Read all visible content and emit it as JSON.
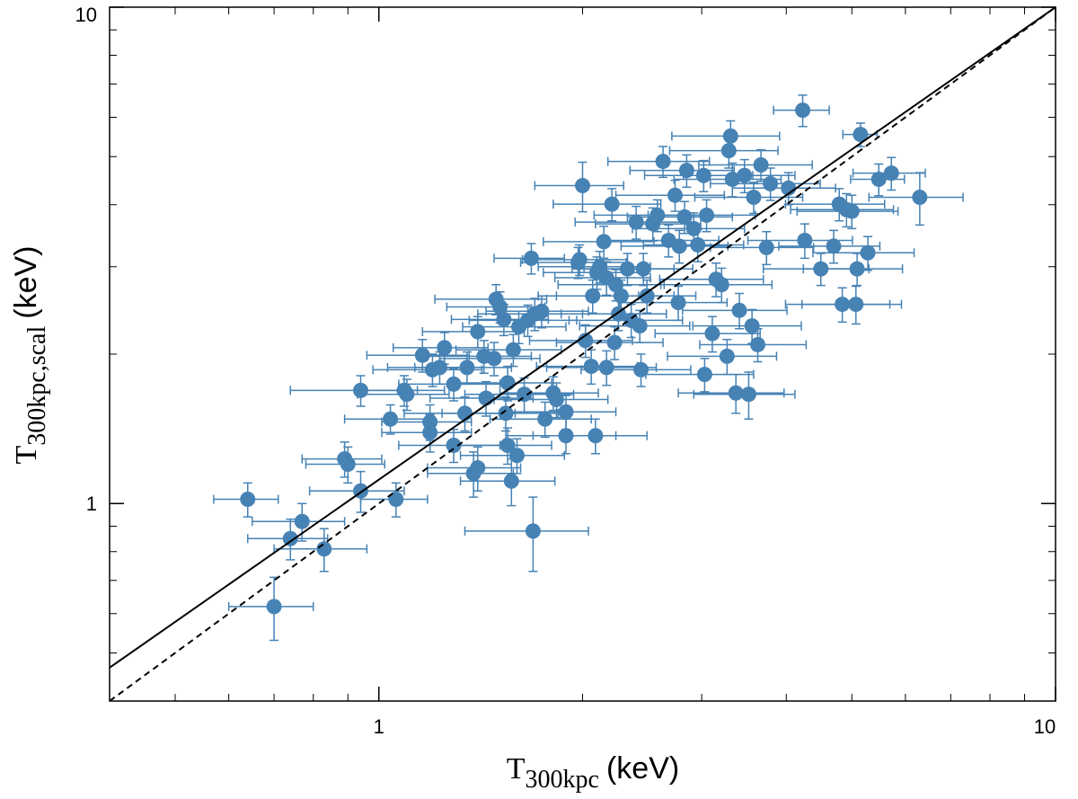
{
  "chart_data": {
    "type": "scatter",
    "xlabel": {
      "symbol": "T",
      "subscript": "300kpc",
      "unit": "(keV)"
    },
    "ylabel": {
      "symbol": "T",
      "subscript": "300kpc,scal",
      "unit": "(keV)"
    },
    "xscale": "log",
    "yscale": "log",
    "xlim": [
      0.4,
      10
    ],
    "ylim": [
      0.4,
      10
    ],
    "xticks": [
      1,
      10
    ],
    "yticks": [
      1,
      10
    ],
    "color": "#4682b4",
    "points": {
      "x": [
        0.64,
        0.7,
        0.74,
        0.77,
        0.83,
        0.89,
        0.9,
        0.94,
        0.94,
        1.06,
        1.04,
        1.09,
        1.1,
        1.19,
        1.19,
        1.16,
        1.2,
        1.23,
        1.25,
        1.29,
        1.35,
        1.38,
        1.4,
        1.29,
        1.34,
        1.4,
        1.43,
        1.44,
        1.48,
        1.49,
        1.51,
        1.53,
        1.55,
        1.54,
        1.57,
        1.55,
        1.58,
        1.6,
        1.61,
        1.64,
        1.68,
        1.69,
        1.66,
        1.7,
        1.74,
        1.76,
        1.81,
        1.83,
        1.89,
        1.89,
        1.97,
        1.98,
        2.0,
        2.02,
        2.06,
        2.07,
        2.09,
        2.1,
        2.12,
        2.15,
        2.17,
        2.17,
        2.21,
        2.23,
        2.24,
        2.26,
        2.28,
        2.33,
        2.36,
        2.4,
        2.43,
        2.44,
        2.46,
        2.49,
        2.54,
        2.58,
        2.63,
        2.68,
        2.74,
        2.78,
        2.77,
        2.83,
        2.85,
        2.92,
        2.96,
        3.02,
        3.03,
        3.05,
        3.11,
        3.15,
        3.21,
        3.27,
        3.31,
        3.29,
        3.33,
        3.37,
        3.41,
        3.47,
        3.52,
        3.56,
        3.58,
        3.63,
        3.67,
        3.74,
        3.79,
        4.03,
        4.23,
        4.26,
        4.5,
        4.7,
        4.79,
        4.91,
        5.0,
        5.09,
        4.84,
        5.07,
        5.15,
        5.28,
        5.48,
        5.72,
        6.3
      ],
      "y": [
        1.02,
        0.62,
        0.85,
        0.92,
        0.81,
        1.23,
        1.2,
        1.06,
        1.69,
        1.02,
        1.48,
        1.69,
        1.66,
        1.46,
        1.39,
        1.99,
        1.86,
        1.88,
        2.06,
        1.74,
        1.88,
        1.15,
        1.18,
        1.31,
        1.52,
        2.22,
        1.98,
        1.63,
        1.96,
        2.58,
        2.49,
        2.35,
        1.75,
        1.52,
        1.11,
        1.31,
        2.04,
        1.25,
        2.27,
        1.66,
        3.12,
        0.88,
        2.34,
        2.41,
        2.44,
        1.48,
        1.67,
        1.62,
        1.53,
        1.37,
        3.06,
        3.1,
        4.37,
        2.13,
        1.89,
        2.62,
        1.37,
        2.92,
        3.0,
        3.37,
        1.88,
        2.85,
        4.01,
        2.11,
        2.76,
        2.41,
        2.62,
        2.97,
        2.34,
        3.69,
        2.28,
        1.86,
        2.97,
        2.62,
        3.66,
        3.81,
        4.89,
        3.39,
        4.18,
        3.3,
        2.54,
        3.78,
        4.69,
        3.58,
        3.32,
        4.58,
        1.82,
        3.81,
        2.2,
        2.83,
        2.76,
        1.98,
        5.5,
        5.14,
        4.5,
        1.67,
        2.45,
        4.58,
        1.66,
        2.28,
        4.14,
        2.09,
        4.81,
        3.28,
        4.41,
        4.32,
        6.2,
        3.39,
        2.97,
        3.3,
        4.01,
        3.91,
        3.88,
        2.97,
        2.52,
        2.52,
        5.54,
        3.2,
        4.5,
        4.63,
        4.14
      ],
      "xerr": [
        0.07,
        0.1,
        0.1,
        0.12,
        0.13,
        0.12,
        0.12,
        0.15,
        0.2,
        0.12,
        0.15,
        0.16,
        0.17,
        0.18,
        0.18,
        0.2,
        0.22,
        0.2,
        0.2,
        0.22,
        0.22,
        0.2,
        0.22,
        0.22,
        0.25,
        0.24,
        0.25,
        0.25,
        0.25,
        0.28,
        0.25,
        0.25,
        0.25,
        0.3,
        0.25,
        0.25,
        0.28,
        0.28,
        0.28,
        0.3,
        0.2,
        0.35,
        0.3,
        0.3,
        0.3,
        0.3,
        0.3,
        0.35,
        0.35,
        0.35,
        0.35,
        0.35,
        0.3,
        0.35,
        0.35,
        0.35,
        0.4,
        0.35,
        0.4,
        0.4,
        0.4,
        0.35,
        0.4,
        0.4,
        0.4,
        0.4,
        0.45,
        0.4,
        0.45,
        0.45,
        0.45,
        0.45,
        0.45,
        0.45,
        0.45,
        0.5,
        0.45,
        0.5,
        0.5,
        0.5,
        0.5,
        0.5,
        0.5,
        0.55,
        0.5,
        0.55,
        0.55,
        0.55,
        0.55,
        0.55,
        0.6,
        0.6,
        0.6,
        0.6,
        0.6,
        0.6,
        0.6,
        0.65,
        0.6,
        0.65,
        0.65,
        0.65,
        0.7,
        0.65,
        0.7,
        0.7,
        0.4,
        0.75,
        0.8,
        0.8,
        0.8,
        0.85,
        0.85,
        0.85,
        0.85,
        0.85,
        0.3,
        0.9,
        0.5,
        0.7,
        1.0
      ],
      "yerr": [
        0.08,
        0.09,
        0.08,
        0.08,
        0.08,
        0.1,
        0.1,
        0.1,
        0.12,
        0.08,
        0.1,
        0.12,
        0.12,
        0.12,
        0.12,
        0.15,
        0.14,
        0.14,
        0.15,
        0.13,
        0.14,
        0.12,
        0.12,
        0.1,
        0.12,
        0.16,
        0.15,
        0.13,
        0.15,
        0.18,
        0.18,
        0.17,
        0.14,
        0.12,
        0.12,
        0.11,
        0.15,
        0.1,
        0.17,
        0.13,
        0.22,
        0.15,
        0.17,
        0.18,
        0.18,
        0.12,
        0.13,
        0.13,
        0.12,
        0.11,
        0.22,
        0.22,
        0.5,
        0.16,
        0.15,
        0.2,
        0.11,
        0.22,
        0.22,
        0.25,
        0.15,
        0.22,
        0.3,
        0.16,
        0.2,
        0.18,
        0.2,
        0.22,
        0.18,
        0.28,
        0.17,
        0.14,
        0.22,
        0.2,
        0.28,
        0.28,
        0.35,
        0.25,
        0.3,
        0.25,
        0.2,
        0.28,
        0.35,
        0.27,
        0.25,
        0.33,
        0.14,
        0.28,
        0.18,
        0.22,
        0.22,
        0.16,
        0.4,
        0.4,
        0.35,
        0.15,
        0.2,
        0.35,
        0.18,
        0.18,
        0.3,
        0.16,
        0.35,
        0.25,
        0.33,
        0.32,
        0.45,
        0.27,
        0.22,
        0.25,
        0.3,
        0.3,
        0.3,
        0.22,
        0.2,
        0.22,
        0.3,
        0.25,
        0.33,
        0.35,
        0.5
      ]
    },
    "lines": [
      {
        "style": "solid",
        "x": [
          0.4,
          10
        ],
        "y": [
          0.467,
          10
        ]
      },
      {
        "style": "dashed",
        "x": [
          0.4,
          10
        ],
        "y": [
          0.4,
          10
        ]
      }
    ]
  }
}
